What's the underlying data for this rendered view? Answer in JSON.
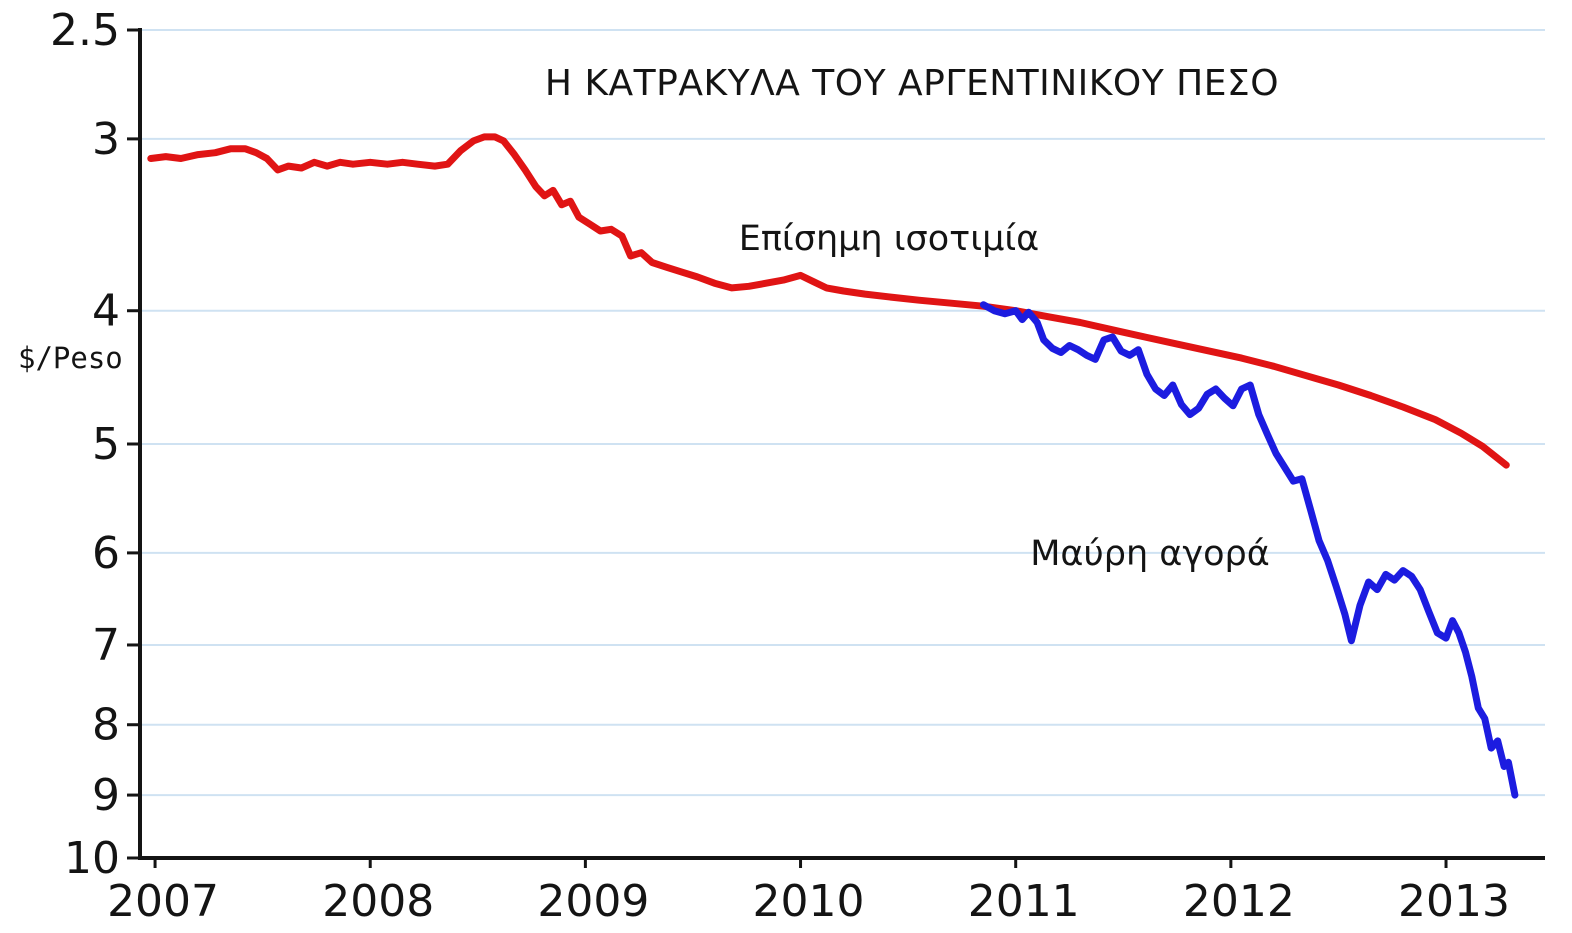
{
  "chart_data": {
    "type": "line",
    "title": "Η ΚΑΤΡΑΚΥΛΑ ΤΟΥ ΑΡΓΕΝΤΙΝΙΚΟΥ ΠΕΣΟ",
    "ylabel": "$/Peso",
    "xlabel": "",
    "y_scale": "logarithmic-inverted",
    "x_domain": [
      2006.93,
      2013.46
    ],
    "y_domain": [
      2.5,
      10
    ],
    "y_ticks": [
      "2.5",
      "3",
      "4",
      "5",
      "6",
      "7",
      "8",
      "9",
      "10"
    ],
    "y_tick_values": [
      2.5,
      3,
      4,
      5,
      6,
      7,
      8,
      9,
      10
    ],
    "x_ticks": [
      "2007",
      "2008",
      "2009",
      "2010",
      "2011",
      "2012",
      "2013"
    ],
    "x_tick_values": [
      2007,
      2008,
      2009,
      2010,
      2011,
      2012,
      2013
    ],
    "grid": "horizontal",
    "grid_color": "#cfe2f2",
    "axis_color": "#141414",
    "series": [
      {
        "id": "official",
        "name": "Επίσημη ισοτιμία",
        "color": "#e01414",
        "points": [
          [
            2006.98,
            3.1
          ],
          [
            2007.05,
            3.09
          ],
          [
            2007.12,
            3.1
          ],
          [
            2007.2,
            3.08
          ],
          [
            2007.28,
            3.07
          ],
          [
            2007.35,
            3.05
          ],
          [
            2007.42,
            3.05
          ],
          [
            2007.47,
            3.07
          ],
          [
            2007.52,
            3.1
          ],
          [
            2007.57,
            3.16
          ],
          [
            2007.62,
            3.14
          ],
          [
            2007.68,
            3.15
          ],
          [
            2007.74,
            3.12
          ],
          [
            2007.8,
            3.14
          ],
          [
            2007.86,
            3.12
          ],
          [
            2007.92,
            3.13
          ],
          [
            2008.0,
            3.12
          ],
          [
            2008.08,
            3.13
          ],
          [
            2008.15,
            3.12
          ],
          [
            2008.22,
            3.13
          ],
          [
            2008.3,
            3.14
          ],
          [
            2008.36,
            3.13
          ],
          [
            2008.42,
            3.06
          ],
          [
            2008.48,
            3.01
          ],
          [
            2008.53,
            2.99
          ],
          [
            2008.58,
            2.99
          ],
          [
            2008.62,
            3.01
          ],
          [
            2008.67,
            3.08
          ],
          [
            2008.72,
            3.16
          ],
          [
            2008.77,
            3.25
          ],
          [
            2008.81,
            3.3
          ],
          [
            2008.85,
            3.27
          ],
          [
            2008.89,
            3.35
          ],
          [
            2008.93,
            3.33
          ],
          [
            2008.97,
            3.42
          ],
          [
            2009.02,
            3.46
          ],
          [
            2009.07,
            3.5
          ],
          [
            2009.12,
            3.49
          ],
          [
            2009.17,
            3.53
          ],
          [
            2009.21,
            3.65
          ],
          [
            2009.26,
            3.63
          ],
          [
            2009.31,
            3.69
          ],
          [
            2009.38,
            3.72
          ],
          [
            2009.45,
            3.75
          ],
          [
            2009.52,
            3.78
          ],
          [
            2009.6,
            3.82
          ],
          [
            2009.68,
            3.85
          ],
          [
            2009.76,
            3.84
          ],
          [
            2009.84,
            3.82
          ],
          [
            2009.92,
            3.8
          ],
          [
            2010.0,
            3.77
          ],
          [
            2010.06,
            3.81
          ],
          [
            2010.12,
            3.85
          ],
          [
            2010.2,
            3.87
          ],
          [
            2010.3,
            3.89
          ],
          [
            2010.42,
            3.91
          ],
          [
            2010.55,
            3.93
          ],
          [
            2010.7,
            3.95
          ],
          [
            2010.85,
            3.97
          ],
          [
            2011.0,
            4.0
          ],
          [
            2011.15,
            4.04
          ],
          [
            2011.3,
            4.08
          ],
          [
            2011.45,
            4.13
          ],
          [
            2011.6,
            4.18
          ],
          [
            2011.75,
            4.23
          ],
          [
            2011.9,
            4.28
          ],
          [
            2012.05,
            4.33
          ],
          [
            2012.2,
            4.39
          ],
          [
            2012.35,
            4.46
          ],
          [
            2012.5,
            4.53
          ],
          [
            2012.65,
            4.61
          ],
          [
            2012.8,
            4.7
          ],
          [
            2012.95,
            4.8
          ],
          [
            2013.07,
            4.91
          ],
          [
            2013.17,
            5.02
          ],
          [
            2013.28,
            5.18
          ]
        ]
      },
      {
        "id": "black-market",
        "name": "Μαύρη αγορά",
        "color": "#1c1ce0",
        "points": [
          [
            2010.85,
            3.96
          ],
          [
            2010.9,
            4.0
          ],
          [
            2010.95,
            4.02
          ],
          [
            2011.0,
            4.0
          ],
          [
            2011.03,
            4.06
          ],
          [
            2011.06,
            4.01
          ],
          [
            2011.1,
            4.08
          ],
          [
            2011.13,
            4.2
          ],
          [
            2011.17,
            4.26
          ],
          [
            2011.21,
            4.29
          ],
          [
            2011.25,
            4.24
          ],
          [
            2011.29,
            4.27
          ],
          [
            2011.33,
            4.31
          ],
          [
            2011.37,
            4.34
          ],
          [
            2011.41,
            4.2
          ],
          [
            2011.45,
            4.18
          ],
          [
            2011.49,
            4.28
          ],
          [
            2011.53,
            4.31
          ],
          [
            2011.57,
            4.27
          ],
          [
            2011.61,
            4.45
          ],
          [
            2011.65,
            4.56
          ],
          [
            2011.69,
            4.61
          ],
          [
            2011.73,
            4.53
          ],
          [
            2011.77,
            4.68
          ],
          [
            2011.81,
            4.76
          ],
          [
            2011.85,
            4.71
          ],
          [
            2011.89,
            4.6
          ],
          [
            2011.93,
            4.56
          ],
          [
            2011.97,
            4.63
          ],
          [
            2012.01,
            4.69
          ],
          [
            2012.05,
            4.56
          ],
          [
            2012.09,
            4.53
          ],
          [
            2012.13,
            4.76
          ],
          [
            2012.17,
            4.92
          ],
          [
            2012.21,
            5.08
          ],
          [
            2012.25,
            5.2
          ],
          [
            2012.29,
            5.32
          ],
          [
            2012.33,
            5.3
          ],
          [
            2012.37,
            5.58
          ],
          [
            2012.41,
            5.88
          ],
          [
            2012.45,
            6.08
          ],
          [
            2012.49,
            6.35
          ],
          [
            2012.53,
            6.65
          ],
          [
            2012.56,
            6.95
          ],
          [
            2012.6,
            6.55
          ],
          [
            2012.64,
            6.3
          ],
          [
            2012.68,
            6.38
          ],
          [
            2012.72,
            6.22
          ],
          [
            2012.76,
            6.28
          ],
          [
            2012.8,
            6.18
          ],
          [
            2012.84,
            6.24
          ],
          [
            2012.88,
            6.38
          ],
          [
            2012.92,
            6.62
          ],
          [
            2012.96,
            6.86
          ],
          [
            2013.0,
            6.92
          ],
          [
            2013.03,
            6.72
          ],
          [
            2013.06,
            6.86
          ],
          [
            2013.09,
            7.08
          ],
          [
            2013.12,
            7.38
          ],
          [
            2013.15,
            7.78
          ],
          [
            2013.18,
            7.92
          ],
          [
            2013.21,
            8.32
          ],
          [
            2013.24,
            8.22
          ],
          [
            2013.27,
            8.58
          ],
          [
            2013.29,
            8.52
          ],
          [
            2013.32,
            9.0
          ]
        ]
      }
    ],
    "annotations": [
      {
        "text": "Επίσημη ισοτιμία",
        "series": "official"
      },
      {
        "text": "Μαύρη αγορά",
        "series": "black-market"
      }
    ],
    "legend_position": "inline-labels",
    "line_width": 7
  }
}
